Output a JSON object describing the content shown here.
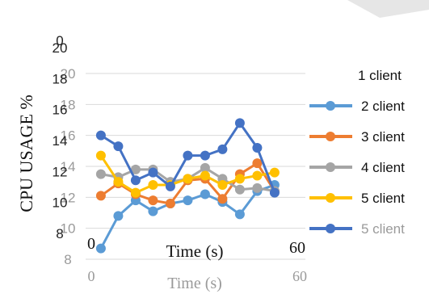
{
  "chart_data": {
    "type": "line",
    "ylabel": "CPU USAGE %",
    "xlabel": "Time (s)",
    "ylim": [
      8,
      20
    ],
    "y_ticks_bottom": [
      "8",
      "10",
      "12",
      "14",
      "16",
      "18",
      "20"
    ],
    "y_ticks_overlay": [
      "8",
      "10",
      "12",
      "14",
      "16",
      "18",
      "20"
    ],
    "y_tick_overlay_top": "0",
    "x_ticks": [
      "0",
      "60"
    ],
    "grid": true,
    "legend_position": "right",
    "legend_heading": "1 client",
    "x": [
      3,
      8,
      13,
      18,
      23,
      28,
      33,
      38,
      43,
      48,
      53
    ],
    "series": [
      {
        "name": "2 client",
        "color": "#5B9BD5",
        "values": [
          8.7,
          10.8,
          11.8,
          11.1,
          11.6,
          11.8,
          12.2,
          11.7,
          10.9,
          12.4,
          12.8
        ]
      },
      {
        "name": "3 client",
        "color": "#ED7D31",
        "values": [
          12.1,
          12.9,
          12.2,
          11.8,
          11.6,
          13.1,
          13.2,
          11.9,
          13.5,
          14.2,
          12.4
        ]
      },
      {
        "name": "4 client",
        "color": "#A5A5A5",
        "values": [
          13.5,
          13.3,
          13.8,
          13.8,
          13.0,
          13.2,
          13.9,
          13.2,
          12.5,
          12.6,
          12.4
        ]
      },
      {
        "name": "5 client",
        "color": "#FFC000",
        "values": [
          14.7,
          13.0,
          12.3,
          12.8,
          12.8,
          13.2,
          13.4,
          12.8,
          13.2,
          13.4,
          13.6
        ]
      },
      {
        "name": "5 client",
        "color": "#4472C4",
        "values": [
          16.0,
          15.3,
          13.1,
          13.6,
          12.7,
          14.7,
          14.7,
          15.1,
          16.8,
          15.2,
          12.3
        ]
      }
    ]
  }
}
